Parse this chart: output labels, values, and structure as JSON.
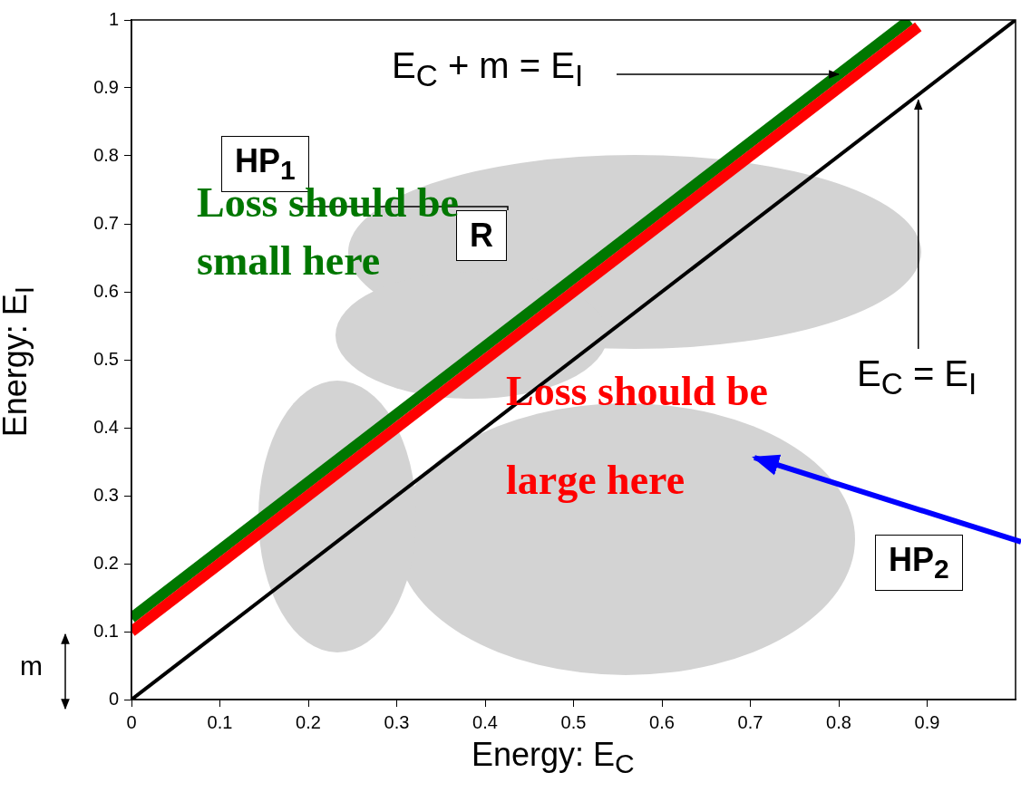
{
  "chart_data": {
    "type": "line",
    "xlabel": "Energy: E$_{C}$",
    "ylabel": "Energy: E$_{I}$",
    "series": [
      {
        "color": "#000000",
        "x": [
          0,
          1
        ],
        "values": [
          0,
          1
        ]
      },
      {
        "color": "#ff0000",
        "x": [
          0,
          0.89
        ],
        "values": [
          0.1,
          0.99
        ]
      },
      {
        "color": "#007700",
        "x": [
          0,
          0.88
        ],
        "values": [
          0.12,
          1.0
        ]
      }
    ],
    "xlim": [
      0,
      1
    ],
    "ylim": [
      0,
      1
    ],
    "xticks": [
      0,
      0.1,
      0.2,
      0.3,
      0.4,
      0.5,
      0.6,
      0.7,
      0.8,
      0.9
    ],
    "yticks": [
      0,
      0.1,
      0.2,
      0.3,
      0.4,
      0.5,
      0.6,
      0.7,
      0.8,
      0.9,
      1
    ],
    "legend": false,
    "marker": "none",
    "line_style": "solid",
    "annotations": [
      "HP$_{1}$",
      "R",
      "Loss should be small here",
      "Loss should be large here",
      {
        "text": "E$_{C}$ + m = E$_{I}$",
        "x": 0.8,
        "y": 0.92
      },
      {
        "text": "E$_{C}$ = E$_{I}$",
        "x": 0.89,
        "y": 0.89
      },
      "HP$_{2}$",
      "m"
    ]
  }
}
